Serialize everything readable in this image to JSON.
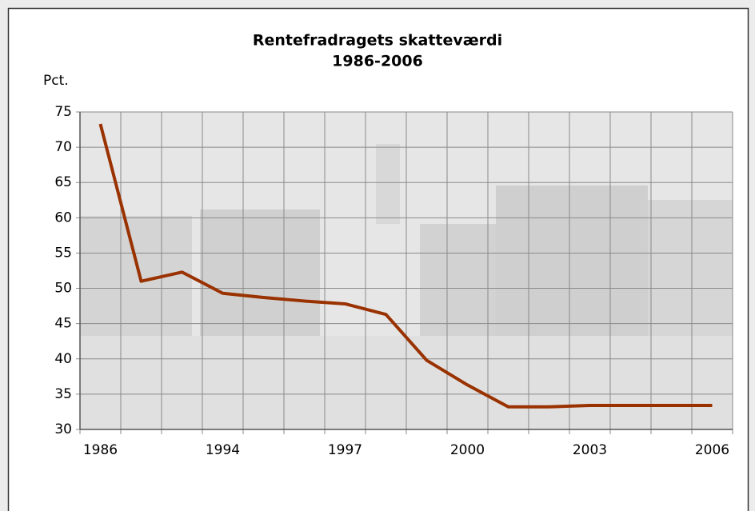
{
  "chart_data": {
    "type": "line",
    "title": "Rentefradragets skatteværdi",
    "subtitle": "1986-2006",
    "y_label": "Pct.",
    "categories": [
      "1986",
      null,
      null,
      "1994",
      null,
      null,
      "1997",
      null,
      null,
      "2000",
      null,
      null,
      "2003",
      null,
      null,
      "2006"
    ],
    "series": [
      {
        "name": "Rentefradragets skatteværdi",
        "color": "#9a3200",
        "values": [
          73.3,
          51,
          52.3,
          49.3,
          48.7,
          48.2,
          47.8,
          46.3,
          39.8,
          36.3,
          33.2,
          33.2,
          33.4,
          33.4,
          33.4,
          33.4
        ]
      }
    ],
    "ylim": [
      30,
      75
    ],
    "yticks": [
      30,
      35,
      40,
      45,
      50,
      55,
      60,
      65,
      70,
      75
    ],
    "grid": true
  }
}
